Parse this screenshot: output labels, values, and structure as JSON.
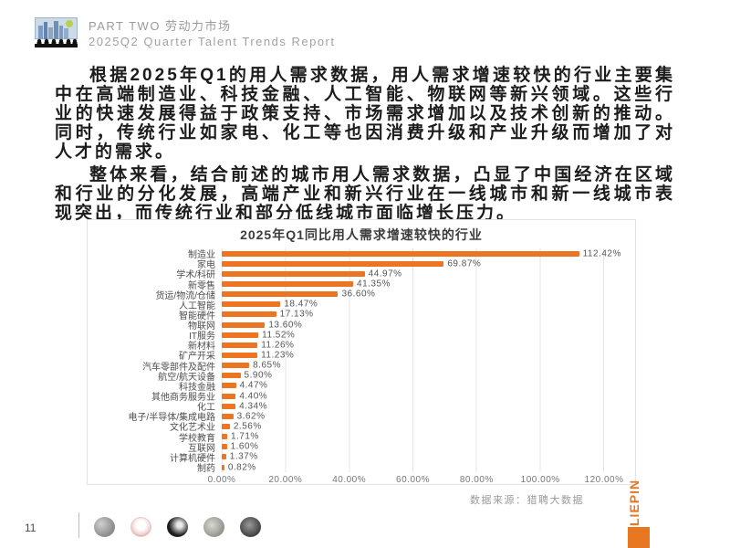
{
  "header": {
    "part_label": "PART TWO 劳动力市场",
    "report_label": "2025Q2 Quarter Talent Trends Report"
  },
  "paragraphs": [
    "根据2025年Q1的用人需求数据，用人需求增速较快的行业主要集中在高端制造业、科技金融、人工智能、物联网等新兴领域。这些行业的快速发展得益于政策支持、市场需求增加以及技术创新的推动。同时，传统行业如家电、化工等也因消费升级和产业升级而增加了对人才的需求。",
    "整体来看，结合前述的城市用人需求数据，凸显了中国经济在区域和行业的分化发展，高端产业和新兴行业在一线城市和新一线城市表现突出，而传统行业和部分低线城市面临增长压力。"
  ],
  "chart_data": {
    "type": "bar",
    "orientation": "horizontal",
    "title": "2025年Q1同比用人需求增速较快的行业",
    "categories": [
      "制造业",
      "家电",
      "学术/科研",
      "新零售",
      "货运/物流/仓储",
      "人工智能",
      "智能硬件",
      "物联网",
      "IT服务",
      "新材料",
      "矿产开采",
      "汽车零部件及配件",
      "航空/航天设备",
      "科技金融",
      "其他商务服务业",
      "化工",
      "电子/半导体/集成电路",
      "文化艺术业",
      "学校教育",
      "互联网",
      "计算机硬件",
      "制药"
    ],
    "values": [
      112.42,
      69.87,
      44.97,
      41.35,
      36.6,
      18.47,
      17.13,
      13.6,
      11.52,
      11.26,
      11.23,
      8.65,
      5.9,
      4.47,
      4.4,
      4.34,
      3.62,
      2.56,
      1.71,
      1.6,
      1.37,
      0.82
    ],
    "value_labels": [
      "112.42%",
      "69.87%",
      "44.97%",
      "41.35%",
      "36.60%",
      "18.47%",
      "17.13%",
      "13.60%",
      "11.52%",
      "11.26%",
      "11.23%",
      "8.65%",
      "5.90%",
      "4.47%",
      "4.40%",
      "4.34%",
      "3.62%",
      "2.56%",
      "1.71%",
      "1.60%",
      "1.37%",
      "0.82%"
    ],
    "x_ticks": [
      "0.00%",
      "20.00%",
      "40.00%",
      "60.00%",
      "80.00%",
      "100.00%",
      "120.00%"
    ],
    "xlim": [
      0,
      120
    ],
    "grid": true,
    "legend": "none",
    "bar_color": "#ED7420"
  },
  "source_note": "数据来源：猎聘大数据",
  "brand": {
    "name": "LIEPIN",
    "color": "#E87722"
  },
  "footer": {
    "page_number": "11",
    "logos": [
      "gray-globe-logo",
      "red-seal-logo",
      "dark-round-logo",
      "gray-map-logo",
      "dark-globe-logo"
    ]
  },
  "colors": {
    "bar_orange": "#ED7420",
    "brand_orange": "#E87722",
    "header_gray": "#9b9b9b"
  }
}
